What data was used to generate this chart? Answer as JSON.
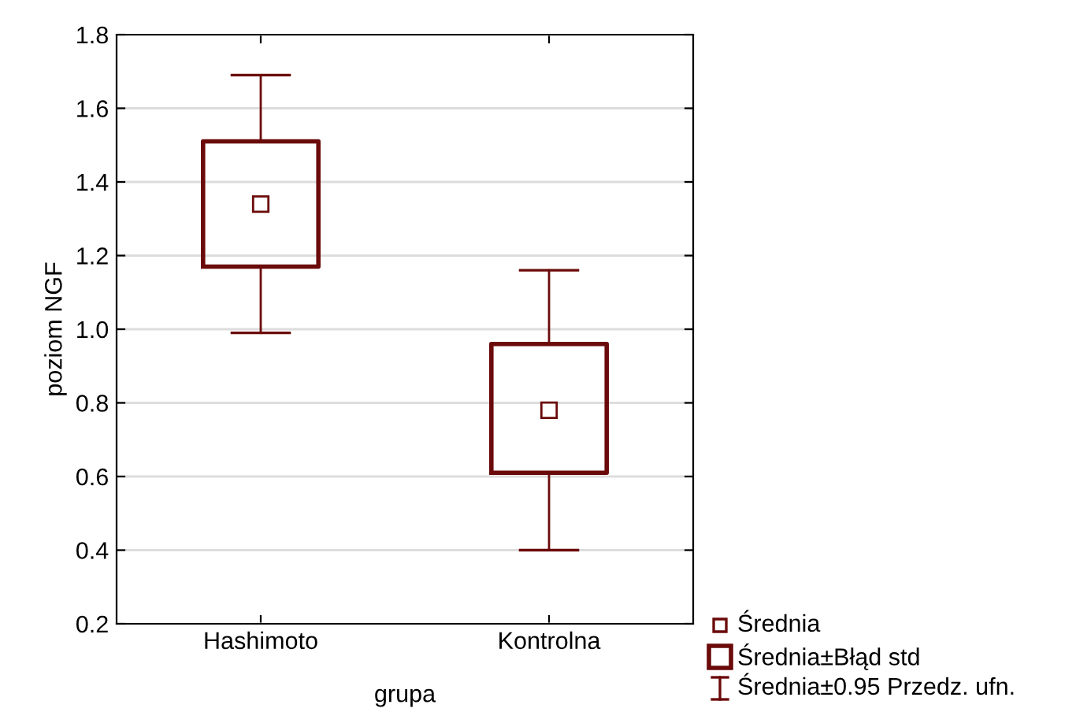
{
  "chart_data": {
    "type": "box",
    "xlabel": "grupa",
    "ylabel": "poziom NGF",
    "categories": [
      "Hashimoto",
      "Kontrolna"
    ],
    "series": [
      {
        "color": "#6b0a0a",
        "boxes": [
          {
            "low": 0.99,
            "q1": 1.17,
            "median": 1.34,
            "q3": 1.51,
            "high": 1.69
          },
          {
            "low": 0.4,
            "q1": 0.61,
            "median": 0.78,
            "q3": 0.96,
            "high": 1.16
          }
        ]
      }
    ],
    "ylim": [
      0.2,
      1.8
    ],
    "yticks": [
      0.2,
      0.4,
      0.6,
      0.8,
      {
        "value": 1.0,
        "label": "1.0"
      },
      1.2,
      1.4,
      1.6,
      1.8
    ],
    "grid": "y",
    "annotations": [
      "Średnia",
      "Średnia±Błąd std",
      "Średnia±0.95 Przedz. ufn."
    ]
  }
}
